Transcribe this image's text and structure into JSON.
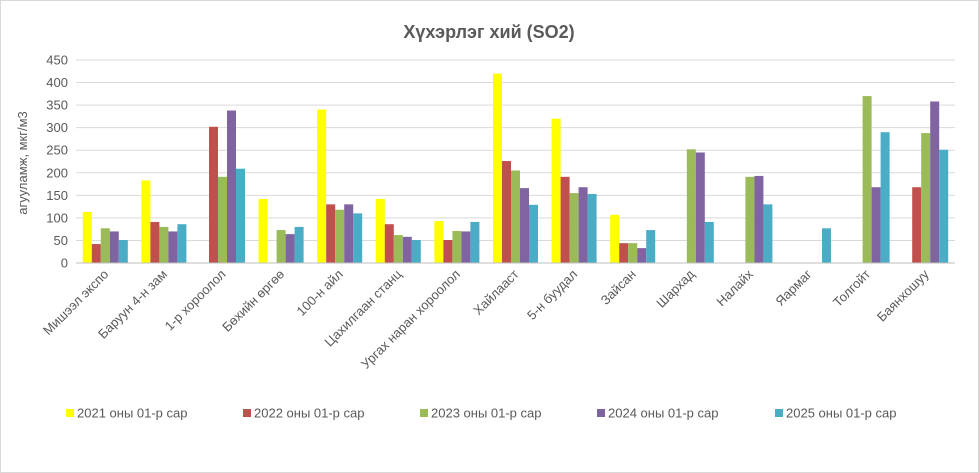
{
  "chart_data": {
    "type": "bar",
    "title": "Хүхэрлэг хий (SO2)",
    "ylabel": "агууламж, мкг/м3",
    "xlabel": "",
    "ylim": [
      0,
      450
    ],
    "yticks": [
      0,
      50,
      100,
      150,
      200,
      250,
      300,
      350,
      400,
      450
    ],
    "grid": true,
    "legend_position": "bottom",
    "categories": [
      "Мишээл экспо",
      "Баруун 4-н зам",
      "1-р хороолол",
      "Бөхийн өргөө",
      "100-н айл",
      "Цахилгаан станц",
      "Ургах наран хороолол",
      "Хайлааст",
      "5-н буудал",
      "Зайсан",
      "Шархад",
      "Налайх",
      "Яармаг",
      "Толгойт",
      "Баянхошуу"
    ],
    "series": [
      {
        "name": "2021 оны 01-р сар",
        "color": "#ffff00",
        "values": [
          113,
          183,
          null,
          142,
          340,
          142,
          93,
          420,
          320,
          107,
          null,
          null,
          null,
          null,
          null
        ]
      },
      {
        "name": "2022 оны 01-р сар",
        "color": "#c0504d",
        "values": [
          42,
          91,
          302,
          null,
          130,
          86,
          51,
          226,
          191,
          44,
          null,
          null,
          null,
          null,
          168
        ]
      },
      {
        "name": "2023 оны 01-р сар",
        "color": "#9bbb59",
        "values": [
          77,
          80,
          191,
          73,
          118,
          62,
          71,
          205,
          155,
          44,
          252,
          191,
          null,
          370,
          288
        ]
      },
      {
        "name": "2024 оны 01-р сар",
        "color": "#8064a2",
        "values": [
          70,
          70,
          338,
          64,
          130,
          58,
          70,
          166,
          168,
          33,
          245,
          193,
          null,
          168,
          358
        ]
      },
      {
        "name": "2025 оны 01-р сар",
        "color": "#4bacc6",
        "values": [
          51,
          86,
          209,
          80,
          110,
          51,
          91,
          129,
          153,
          73,
          91,
          130,
          77,
          290,
          251
        ]
      }
    ]
  }
}
